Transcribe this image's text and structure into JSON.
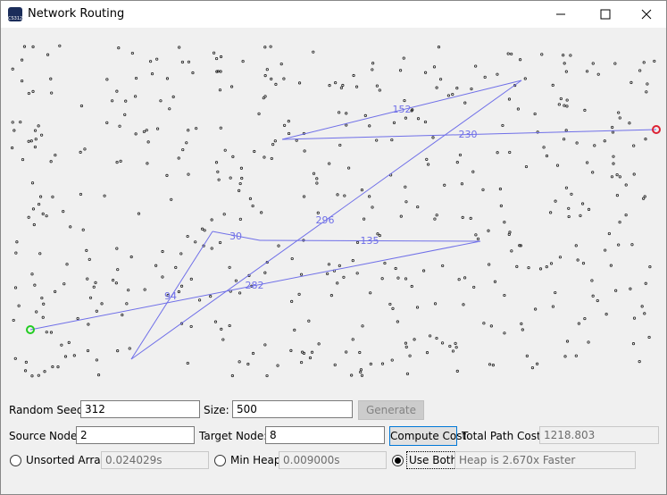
{
  "window": {
    "title": "Network Routing",
    "icon_text": "CS312"
  },
  "graph": {
    "edge_labels": [
      "282",
      "135",
      "30",
      "94",
      "296",
      "152",
      "230"
    ]
  },
  "controls": {
    "seed_label": "Random Seed:",
    "seed_value": "312",
    "size_label": "Size:",
    "size_value": "500",
    "generate_button": "Generate",
    "source_label": "Source Node:",
    "source_value": "2",
    "target_label": "Target Node:",
    "target_value": "8",
    "compute_button": "Compute Cost",
    "total_label": "Total Path Cost:",
    "total_value": "1218.803",
    "radio_unsorted": "Unsorted Array",
    "unsorted_time": "0.024029s",
    "radio_heap": "Min Heap",
    "heap_time": "0.009000s",
    "radio_both": "Use Both",
    "speedup_text": "Heap is 2.670x Faster"
  }
}
